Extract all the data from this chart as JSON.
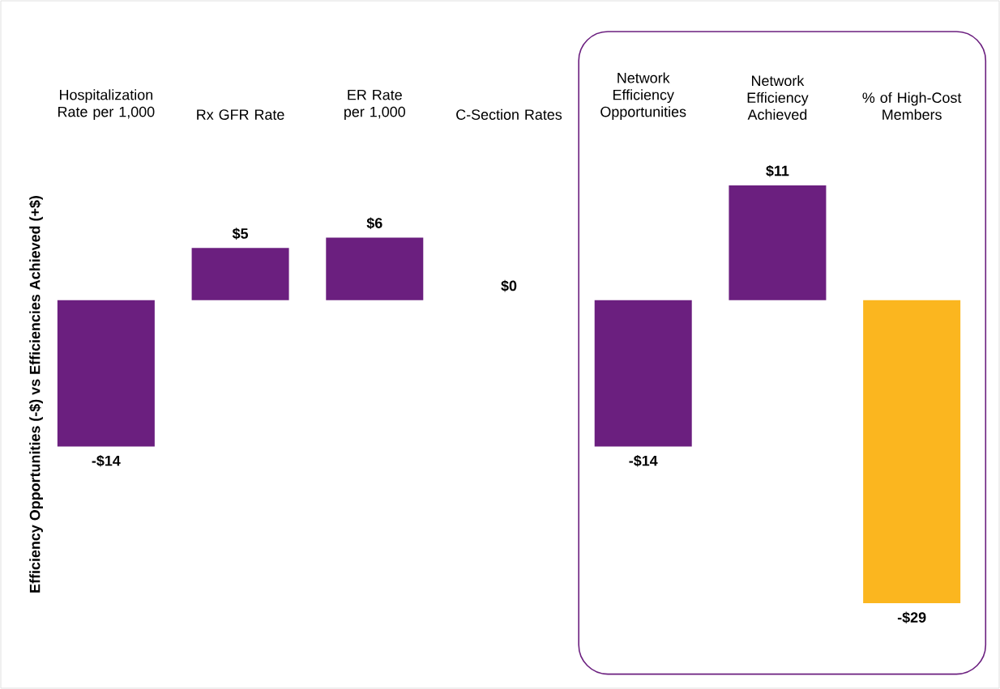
{
  "chart_data": {
    "type": "bar",
    "ylabel": "Efficiency Opportunities (-$) vs Efficiencies Achieved (+$)",
    "categories": [
      "Hospitalization Rate per 1,000",
      "Rx GFR Rate",
      "ER Rate per 1,000",
      "C-Section Rates",
      "Network Efficiency Opportunities",
      "Network Efficiency Achieved",
      "% of High-Cost Members"
    ],
    "values": [
      -14,
      5,
      6,
      0,
      -14,
      11,
      -29
    ],
    "colors": [
      "#6b1f7f",
      "#6b1f7f",
      "#6b1f7f",
      "#6b1f7f",
      "#6b1f7f",
      "#6b1f7f",
      "#fbb61f"
    ],
    "value_labels": [
      "-$14",
      "$5",
      "$6",
      "$0",
      "-$14",
      "$11",
      "-$29"
    ]
  }
}
